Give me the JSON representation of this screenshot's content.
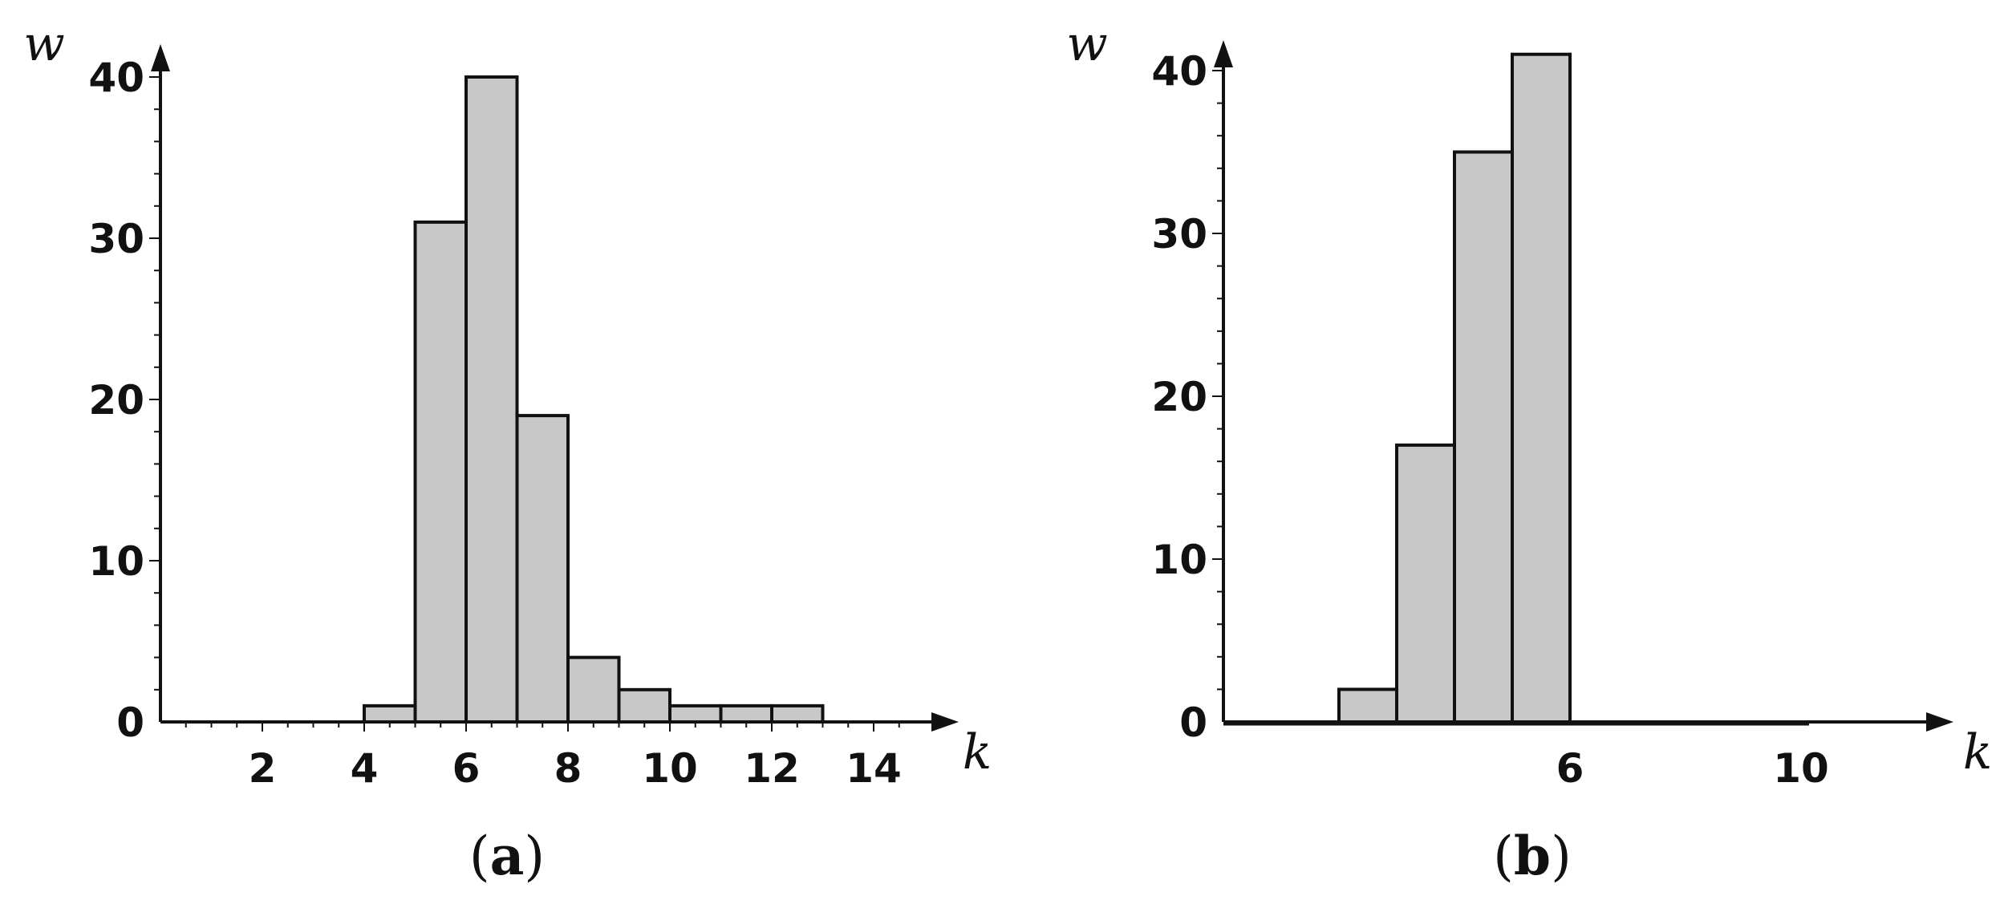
{
  "chart_data": [
    {
      "type": "bar",
      "caption_open": "(",
      "caption_letter": "a",
      "caption_close": ")",
      "xlabel": "k",
      "ylabel": "w",
      "xlim": [
        0,
        15
      ],
      "ylim": [
        0,
        40
      ],
      "x_ticks": [
        2,
        4,
        6,
        8,
        10,
        12,
        14
      ],
      "y_ticks": [
        0,
        10,
        20,
        30,
        40
      ],
      "bin_width": 1,
      "bins": [
        {
          "x0": 4,
          "x1": 5,
          "value": 1
        },
        {
          "x0": 5,
          "x1": 6,
          "value": 31
        },
        {
          "x0": 6,
          "x1": 7,
          "value": 40
        },
        {
          "x0": 7,
          "x1": 8,
          "value": 19
        },
        {
          "x0": 8,
          "x1": 9,
          "value": 4
        },
        {
          "x0": 9,
          "x1": 10,
          "value": 2
        },
        {
          "x0": 10,
          "x1": 11,
          "value": 1
        },
        {
          "x0": 11,
          "x1": 12,
          "value": 1
        },
        {
          "x0": 12,
          "x1": 13,
          "value": 1
        }
      ],
      "grid": false,
      "bar_color": "#c8c8c8"
    },
    {
      "type": "bar",
      "caption_open": "(",
      "caption_letter": "b",
      "caption_close": ")",
      "xlabel": "k",
      "ylabel": "w",
      "xlim": [
        0,
        12.5
      ],
      "ylim": [
        0,
        40
      ],
      "x_ticks": [
        6,
        10
      ],
      "y_ticks": [
        0,
        10,
        20,
        30,
        40
      ],
      "bin_width": 1,
      "bins": [
        {
          "x0": 2,
          "x1": 3,
          "value": 2
        },
        {
          "x0": 3,
          "x1": 4,
          "value": 17
        },
        {
          "x0": 4,
          "x1": 5,
          "value": 35
        },
        {
          "x0": 5,
          "x1": 6,
          "value": 41
        }
      ],
      "grid": false,
      "bar_color": "#c8c8c8"
    }
  ]
}
